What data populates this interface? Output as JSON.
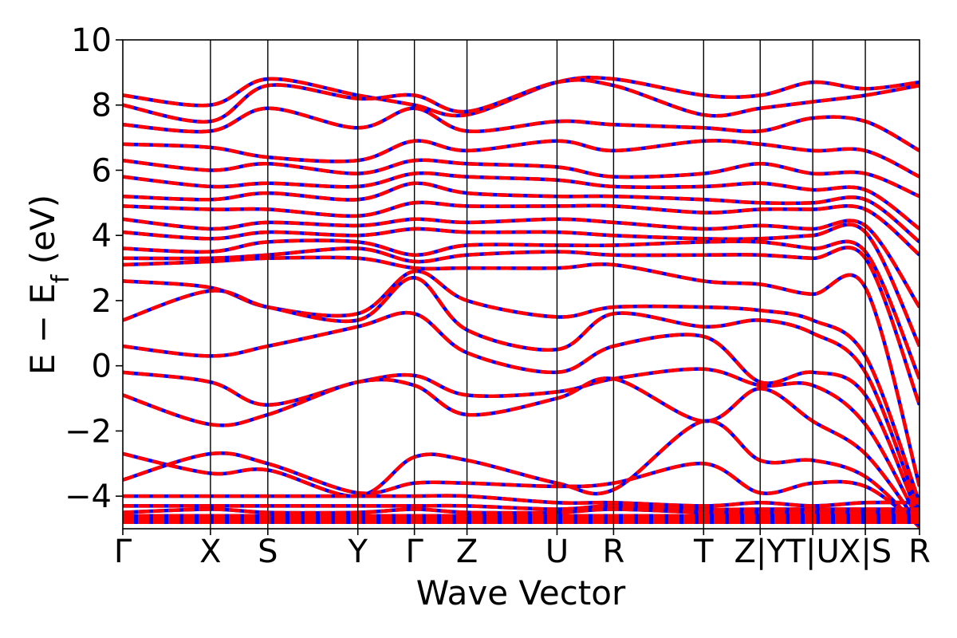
{
  "chart_data": {
    "type": "line",
    "title": "",
    "xlabel": "Wave Vector",
    "ylabel_parts": [
      "E − E",
      "f",
      " (eV)"
    ],
    "ylim": [
      -5,
      10
    ],
    "yticks": [
      -4,
      -2,
      0,
      2,
      4,
      6,
      8,
      10
    ],
    "ytick_labels": [
      "−4",
      "−2",
      "0",
      "2",
      "4",
      "6",
      "8",
      "10"
    ],
    "xlim": [
      0,
      10
    ],
    "kpoints": [
      {
        "label": "Γ",
        "x": 0.0
      },
      {
        "label": "X",
        "x": 1.1
      },
      {
        "label": "S",
        "x": 1.82
      },
      {
        "label": "Y",
        "x": 2.95
      },
      {
        "label": "Γ",
        "x": 3.66
      },
      {
        "label": "Z",
        "x": 4.32
      },
      {
        "label": "U",
        "x": 5.45
      },
      {
        "label": "R",
        "x": 6.16
      },
      {
        "label": "T",
        "x": 7.29
      },
      {
        "label": "Z|Y",
        "x": 8.0
      },
      {
        "label": "T|U",
        "x": 8.66
      },
      {
        "label": "X|S",
        "x": 9.32
      },
      {
        "label": "R",
        "x": 10.0
      }
    ],
    "series": [
      {
        "color": "#0000ff",
        "style": "solid"
      },
      {
        "color": "#ff0000",
        "style": "dashed"
      }
    ],
    "grid": false,
    "legend": "none",
    "bands": [
      {
        "x": [
          0,
          1.1,
          1.82,
          2.95,
          3.66,
          4.32,
          5.45,
          6.16,
          7.29,
          8.0,
          8.66,
          9.32,
          10.0
        ],
        "y": [
          8.3,
          8.0,
          8.8,
          8.3,
          8.0,
          7.7,
          8.7,
          8.8,
          8.3,
          8.3,
          8.7,
          8.5,
          8.7
        ]
      },
      {
        "x": [
          0,
          1.1,
          1.82,
          2.95,
          3.66,
          4.32,
          5.45,
          6.16,
          7.29,
          8.0,
          8.66,
          9.32,
          10.0
        ],
        "y": [
          8.0,
          7.5,
          8.6,
          8.2,
          8.3,
          7.8,
          8.7,
          8.6,
          7.7,
          7.9,
          8.1,
          8.3,
          8.6
        ]
      },
      {
        "x": [
          0,
          1.1,
          1.82,
          2.95,
          3.66,
          4.32,
          5.45,
          6.16,
          7.29,
          8.0,
          8.66,
          9.32,
          10.0
        ],
        "y": [
          7.4,
          7.2,
          7.9,
          7.3,
          7.9,
          7.2,
          7.5,
          7.4,
          7.3,
          7.2,
          7.6,
          7.5,
          6.6
        ]
      },
      {
        "x": [
          0,
          1.1,
          1.82,
          2.95,
          3.66,
          4.32,
          5.45,
          6.16,
          7.29,
          8.0,
          8.66,
          9.32,
          10.0
        ],
        "y": [
          6.8,
          6.7,
          6.4,
          6.3,
          6.9,
          6.6,
          6.9,
          6.6,
          6.9,
          6.8,
          6.6,
          6.6,
          5.8
        ]
      },
      {
        "x": [
          0,
          1.1,
          1.82,
          2.95,
          3.66,
          4.32,
          5.45,
          6.16,
          7.29,
          8.0,
          8.66,
          9.32,
          10.0
        ],
        "y": [
          6.3,
          6.0,
          6.2,
          5.9,
          6.3,
          6.2,
          6.1,
          5.8,
          5.9,
          6.2,
          5.9,
          5.9,
          5.2
        ]
      },
      {
        "x": [
          0,
          1.1,
          1.82,
          2.95,
          3.66,
          4.32,
          5.45,
          6.16,
          7.29,
          8.0,
          8.66,
          9.32,
          10.0
        ],
        "y": [
          5.8,
          5.5,
          5.6,
          5.5,
          5.9,
          5.8,
          5.7,
          5.5,
          5.5,
          5.6,
          5.4,
          5.4,
          4.2
        ]
      },
      {
        "x": [
          0,
          1.1,
          1.82,
          2.95,
          3.66,
          4.32,
          5.45,
          6.16,
          7.29,
          8.0,
          8.66,
          9.32,
          10.0
        ],
        "y": [
          5.2,
          5.1,
          5.3,
          5.1,
          5.6,
          5.3,
          5.2,
          5.2,
          5.1,
          5.0,
          5.0,
          5.1,
          3.8
        ]
      },
      {
        "x": [
          0,
          1.1,
          1.82,
          2.95,
          3.66,
          4.32,
          5.45,
          6.16,
          7.29,
          8.0,
          8.66,
          9.32,
          10.0
        ],
        "y": [
          4.9,
          4.8,
          4.8,
          4.6,
          5.0,
          4.9,
          4.9,
          4.9,
          4.7,
          4.8,
          4.8,
          4.8,
          3.4
        ]
      },
      {
        "x": [
          0,
          1.1,
          1.82,
          2.95,
          3.66,
          4.32,
          5.45,
          6.16,
          7.29,
          8.0,
          8.66,
          9.32,
          10.0
        ],
        "y": [
          4.5,
          4.2,
          4.4,
          4.3,
          4.5,
          4.4,
          4.5,
          4.4,
          4.2,
          4.3,
          4.2,
          4.3,
          1.8
        ]
      },
      {
        "x": [
          0,
          1.1,
          1.82,
          2.95,
          3.66,
          4.32,
          5.45,
          6.16,
          7.29,
          8.0,
          8.66,
          9.32,
          10.0
        ],
        "y": [
          4.1,
          3.9,
          4.1,
          4.0,
          4.2,
          4.1,
          4.1,
          4.0,
          3.9,
          3.9,
          4.0,
          4.1,
          0.6
        ]
      },
      {
        "x": [
          0,
          1.1,
          1.82,
          2.95,
          3.66,
          4.32,
          5.45,
          6.16,
          7.29,
          8.0,
          8.66,
          9.32,
          10.0
        ],
        "y": [
          3.6,
          3.5,
          3.8,
          3.8,
          3.4,
          3.7,
          3.7,
          3.7,
          3.8,
          3.8,
          3.6,
          3.5,
          -0.4
        ]
      },
      {
        "x": [
          0,
          1.1,
          1.82,
          2.95,
          3.66,
          4.32,
          5.45,
          6.16,
          7.29,
          8.0,
          8.66,
          9.32,
          10.0
        ],
        "y": [
          3.3,
          3.3,
          3.4,
          3.6,
          3.2,
          3.4,
          3.5,
          3.4,
          3.4,
          3.4,
          3.3,
          3.3,
          -1.2
        ]
      },
      {
        "x": [
          0,
          1.1,
          1.82,
          2.95,
          3.66,
          4.32,
          5.45,
          6.16,
          7.29,
          8.0,
          8.66,
          9.32,
          10.0
        ],
        "y": [
          3.1,
          3.2,
          3.3,
          3.3,
          3.0,
          3.0,
          3.0,
          3.1,
          2.6,
          2.5,
          2.2,
          2.4,
          -3.7
        ]
      },
      {
        "x": [
          0,
          1.1,
          1.82,
          2.95,
          3.66,
          4.32,
          5.45,
          6.16,
          7.29,
          8.0,
          8.66,
          9.32,
          10.0
        ],
        "y": [
          2.6,
          2.4,
          1.8,
          1.6,
          2.9,
          2.0,
          1.5,
          1.8,
          1.8,
          1.7,
          1.4,
          0.3,
          -4.2
        ]
      },
      {
        "x": [
          0,
          1.1,
          1.82,
          2.95,
          3.66,
          4.32,
          5.45,
          6.16,
          7.29,
          8.0,
          8.66,
          9.32,
          10.0
        ],
        "y": [
          1.4,
          2.3,
          1.8,
          1.4,
          2.7,
          1.1,
          0.5,
          1.6,
          1.2,
          1.4,
          1.0,
          -0.2,
          -4.5
        ]
      },
      {
        "x": [
          0,
          1.1,
          1.82,
          2.95,
          3.66,
          4.32,
          5.45,
          6.16,
          7.29,
          8.0,
          8.66,
          9.32,
          10.0
        ],
        "y": [
          0.6,
          0.3,
          0.6,
          1.2,
          1.6,
          0.4,
          -0.2,
          0.6,
          0.9,
          -0.5,
          -0.2,
          -0.9,
          -4.7
        ]
      },
      {
        "x": [
          0,
          1.1,
          1.82,
          2.95,
          3.66,
          4.32,
          5.45,
          6.16,
          7.29,
          8.0,
          8.66,
          9.32,
          10.0
        ],
        "y": [
          -0.2,
          -0.5,
          -1.2,
          -0.5,
          -0.3,
          -0.9,
          -0.8,
          -0.4,
          -0.1,
          -0.6,
          -0.6,
          -1.8,
          -4.8
        ]
      },
      {
        "x": [
          0,
          1.1,
          1.82,
          2.95,
          3.66,
          4.32,
          5.45,
          6.16,
          7.29,
          8.0,
          8.66,
          9.32,
          10.0
        ],
        "y": [
          -0.9,
          -1.8,
          -1.5,
          -0.5,
          -0.6,
          -1.5,
          -1.0,
          -0.4,
          -1.7,
          -0.7,
          -1.7,
          -2.7,
          -4.9
        ]
      },
      {
        "x": [
          0,
          1.1,
          1.82,
          2.95,
          3.66,
          4.32,
          5.45,
          6.16,
          7.29,
          8.0,
          8.66,
          9.32,
          10.0
        ],
        "y": [
          -2.7,
          -3.3,
          -3.2,
          -4.0,
          -2.8,
          -2.9,
          -3.6,
          -3.8,
          -1.7,
          -2.9,
          -2.9,
          -3.4,
          -4.95
        ]
      },
      {
        "x": [
          0,
          1.1,
          1.82,
          2.95,
          3.66,
          4.32,
          5.45,
          6.16,
          7.29,
          8.0,
          8.66,
          9.32,
          10.0
        ],
        "y": [
          -3.5,
          -2.7,
          -3.0,
          -3.9,
          -3.6,
          -3.6,
          -3.7,
          -3.6,
          -3.0,
          -3.9,
          -3.6,
          -3.7,
          -4.9
        ]
      },
      {
        "x": [
          0,
          1.1,
          1.82,
          2.95,
          3.66,
          4.32,
          5.45,
          6.16,
          7.29,
          8.0,
          8.66,
          9.32,
          10.0
        ],
        "y": [
          -4.0,
          -4.0,
          -4.0,
          -4.0,
          -4.0,
          -4.0,
          -4.2,
          -4.2,
          -4.3,
          -4.2,
          -4.3,
          -4.2,
          -4.2
        ]
      },
      {
        "x": [
          0,
          1.1,
          1.82,
          2.95,
          3.66,
          4.32,
          5.45,
          6.16,
          7.29,
          8.0,
          8.66,
          9.32,
          10.0
        ],
        "y": [
          -4.3,
          -4.3,
          -4.3,
          -4.3,
          -4.3,
          -4.3,
          -4.4,
          -4.3,
          -4.4,
          -4.4,
          -4.4,
          -4.4,
          -4.4
        ]
      },
      {
        "x": [
          0,
          1.1,
          1.82,
          2.95,
          3.66,
          4.32,
          5.45,
          6.16,
          7.29,
          8.0,
          8.66,
          9.32,
          10.0
        ],
        "y": [
          -4.5,
          -4.4,
          -4.5,
          -4.5,
          -4.4,
          -4.5,
          -4.5,
          -4.4,
          -4.5,
          -4.5,
          -4.5,
          -4.5,
          -4.5
        ]
      },
      {
        "x": [
          0,
          1.1,
          1.82,
          2.95,
          3.66,
          4.32,
          5.45,
          6.16,
          7.29,
          8.0,
          8.66,
          9.32,
          10.0
        ],
        "y": [
          -4.6,
          -4.6,
          -4.6,
          -4.6,
          -4.6,
          -4.6,
          -4.6,
          -4.6,
          -4.6,
          -4.6,
          -4.6,
          -4.6,
          -4.6
        ]
      },
      {
        "x": [
          0,
          1.1,
          1.82,
          2.95,
          3.66,
          4.32,
          5.45,
          6.16,
          7.29,
          8.0,
          8.66,
          9.32,
          10.0
        ],
        "y": [
          -4.7,
          -4.7,
          -4.7,
          -4.7,
          -4.7,
          -4.7,
          -4.7,
          -4.7,
          -4.7,
          -4.7,
          -4.7,
          -4.7,
          -4.7
        ]
      },
      {
        "x": [
          0,
          1.1,
          1.82,
          2.95,
          3.66,
          4.32,
          5.45,
          6.16,
          7.29,
          8.0,
          8.66,
          9.32,
          10.0
        ],
        "y": [
          -4.8,
          -4.8,
          -4.8,
          -4.8,
          -4.8,
          -4.8,
          -4.8,
          -4.8,
          -4.8,
          -4.8,
          -4.8,
          -4.8,
          -4.8
        ]
      }
    ]
  }
}
